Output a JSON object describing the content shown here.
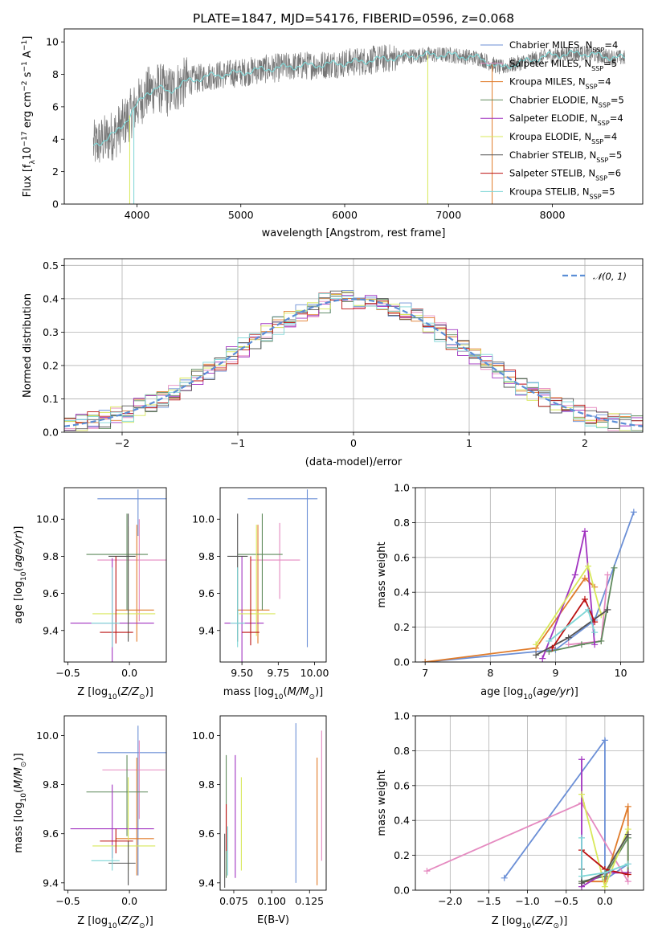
{
  "title": "PLATE=1847, MJD=54176, FIBERID=0596, z=0.068",
  "colors": [
    "#6b8fd6",
    "#e58ac0",
    "#e07b2a",
    "#5f8a5c",
    "#a133c0",
    "#d8e85a",
    "#555555",
    "#bb1111",
    "#7dd6d6"
  ],
  "chart_data": [
    {
      "id": "spectrum",
      "type": "line",
      "xlabel": "wavelength [Angstrom, rest frame]",
      "ylabel": "Flux [f_λ10^-17 erg cm^-2 s^-1 A^-1]",
      "xlim": [
        3300,
        8870
      ],
      "ylim": [
        0,
        10.8
      ],
      "xticks": [
        4000,
        5000,
        6000,
        7000,
        8000
      ],
      "yticks": [
        0,
        2,
        4,
        6,
        8,
        10
      ],
      "grid": false,
      "legend_position": "top-right",
      "legend": [
        {
          "label": "Chabrier MILES",
          "nssp": "4"
        },
        {
          "label": "Salpeter MILES",
          "nssp": "5"
        },
        {
          "label": "Kroupa MILES",
          "nssp": "4"
        },
        {
          "label": "Chabrier ELODIE",
          "nssp": "5"
        },
        {
          "label": "Salpeter ELODIE",
          "nssp": "4"
        },
        {
          "label": "Kroupa ELODIE",
          "nssp": "4"
        },
        {
          "label": "Chabrier STELIB",
          "nssp": "5"
        },
        {
          "label": "Salpeter STELIB",
          "nssp": "6"
        },
        {
          "label": "Kroupa STELIB",
          "nssp": "5"
        }
      ],
      "data_continuum": {
        "x": [
          3580,
          3700,
          3800,
          3900,
          4000,
          4100,
          4200,
          4300,
          4400,
          4500,
          4700,
          5000,
          5200,
          5500,
          5800,
          6000,
          6300,
          6600,
          6800,
          7000,
          7300,
          7500,
          7800,
          8000,
          8300,
          8500,
          8700
        ],
        "y": [
          3.6,
          4.0,
          4.4,
          5.2,
          6.1,
          6.9,
          7.2,
          6.9,
          7.3,
          7.6,
          7.9,
          8.1,
          8.3,
          8.5,
          8.6,
          8.7,
          8.9,
          9.1,
          9.2,
          9.2,
          9.0,
          8.4,
          8.9,
          9.2,
          9.3,
          9.1,
          9.0
        ]
      }
    },
    {
      "id": "residuals",
      "type": "histogram",
      "xlabel": "(data-model)/error",
      "ylabel": "Normed distribution",
      "xlim": [
        -2.5,
        2.5
      ],
      "ylim": [
        0,
        0.52
      ],
      "xticks": [
        -2,
        -1,
        0,
        1,
        2
      ],
      "yticks": [
        0.0,
        0.1,
        0.2,
        0.3,
        0.4,
        0.5
      ],
      "grid": true,
      "legend_position": "top-right",
      "legend": [
        "𝒩(0, 1)"
      ],
      "bin_width": 0.1
    },
    {
      "id": "age_vs_Z",
      "type": "errorbar",
      "xlabel": "Z [log10(Z/Z☉)]",
      "ylabel": "age  [log10(age/yr)]",
      "xlim": [
        -0.53,
        0.3
      ],
      "ylim": [
        9.23,
        10.17
      ],
      "xticks": [
        -0.5,
        0.0
      ],
      "yticks": [
        9.4,
        9.6,
        9.8,
        10.0
      ],
      "points": [
        {
          "x": 0.07,
          "xerr": [
            0.33,
            0.27
          ],
          "y": 10.11,
          "yerr": [
            0.2,
            0.05
          ]
        },
        {
          "x": 0.08,
          "xerr": [
            0.34,
            0.22
          ],
          "y": 9.78,
          "yerr": [
            0.33,
            0.22
          ]
        },
        {
          "x": 0.06,
          "xerr": [
            0.17,
            0.14
          ],
          "y": 9.51,
          "yerr": [
            0.17,
            0.46
          ]
        },
        {
          "x": -0.02,
          "xerr": [
            0.33,
            0.17
          ],
          "y": 9.81,
          "yerr": [
            0.3,
            0.22
          ]
        },
        {
          "x": -0.14,
          "xerr": [
            0.34,
            0.34
          ],
          "y": 9.44,
          "yerr": [
            0.23,
            0.35
          ]
        },
        {
          "x": -0.01,
          "xerr": [
            0.29,
            0.22
          ],
          "y": 9.49,
          "yerr": [
            0.13,
            0.47
          ]
        },
        {
          "x": -0.01,
          "xerr": [
            0.16,
            0.06
          ],
          "y": 9.8,
          "yerr": [
            0.46,
            0.23
          ]
        },
        {
          "x": -0.11,
          "xerr": [
            0.13,
            0.14
          ],
          "y": 9.39,
          "yerr": [
            0.06,
            0.41
          ]
        },
        {
          "x": -0.14,
          "xerr": [
            0.17,
            0.06
          ],
          "y": 9.44,
          "yerr": [
            0.13,
            0.3
          ]
        }
      ]
    },
    {
      "id": "age_vs_mass",
      "type": "errorbar",
      "xlabel": "mass [log10(M/M☉)]",
      "ylabel": "",
      "xlim": [
        9.35,
        10.08
      ],
      "ylim": [
        9.23,
        10.17
      ],
      "xticks": [
        9.5,
        9.75,
        10.0
      ],
      "yticks": [
        9.4,
        9.6,
        9.8,
        10.0
      ],
      "points": [
        {
          "x": 9.95,
          "xerr": [
            0.41,
            0.07
          ],
          "y": 10.11,
          "yerr": [
            0.8,
            0.05
          ]
        },
        {
          "x": 9.76,
          "xerr": [
            0.2,
            0.14
          ],
          "y": 9.78,
          "yerr": [
            0.21,
            0.2
          ]
        },
        {
          "x": 9.61,
          "xerr": [
            0.14,
            0.08
          ],
          "y": 9.51,
          "yerr": [
            0.18,
            0.46
          ]
        },
        {
          "x": 9.64,
          "xerr": [
            0.17,
            0.14
          ],
          "y": 9.81,
          "yerr": [
            0.3,
            0.22
          ]
        },
        {
          "x": 9.5,
          "xerr": [
            0.12,
            0.15
          ],
          "y": 9.44,
          "yerr": [
            0.22,
            0.36
          ]
        },
        {
          "x": 9.6,
          "xerr": [
            0.12,
            0.13
          ],
          "y": 9.49,
          "yerr": [
            0.12,
            0.48
          ]
        },
        {
          "x": 9.47,
          "xerr": [
            0.07,
            0.07
          ],
          "y": 9.8,
          "yerr": [
            0.46,
            0.23
          ]
        },
        {
          "x": 9.56,
          "xerr": [
            0.06,
            0.06
          ],
          "y": 9.39,
          "yerr": [
            0.07,
            0.41
          ]
        },
        {
          "x": 9.47,
          "xerr": [
            0.05,
            0.05
          ],
          "y": 9.44,
          "yerr": [
            0.13,
            0.3
          ]
        }
      ]
    },
    {
      "id": "massweight_vs_age",
      "type": "line",
      "xlabel": "age  [log10(age/yr)]",
      "ylabel": "mass weight",
      "xlim": [
        6.85,
        10.35
      ],
      "ylim": [
        0,
        1.0
      ],
      "xticks": [
        7,
        8,
        9,
        10
      ],
      "yticks": [
        0.0,
        0.2,
        0.4,
        0.6,
        0.8,
        1.0
      ],
      "grid": true,
      "series": [
        {
          "x": [
            7.0,
            9.0,
            9.6,
            10.2
          ],
          "y": [
            0.0,
            0.07,
            0.24,
            0.86
          ]
        },
        {
          "x": [
            9.2,
            9.7,
            9.8
          ],
          "y": [
            0.1,
            0.12,
            0.5
          ]
        },
        {
          "x": [
            7.0,
            8.7,
            9.45,
            9.6
          ],
          "y": [
            0.0,
            0.08,
            0.48,
            0.43
          ]
        },
        {
          "x": [
            8.9,
            9.4,
            9.7,
            9.9
          ],
          "y": [
            0.06,
            0.1,
            0.12,
            0.54
          ]
        },
        {
          "x": [
            8.8,
            9.3,
            9.45,
            9.6
          ],
          "y": [
            0.02,
            0.5,
            0.75,
            0.1
          ]
        },
        {
          "x": [
            8.7,
            9.5,
            9.7
          ],
          "y": [
            0.1,
            0.55,
            0.27
          ]
        },
        {
          "x": [
            8.7,
            9.2,
            9.8
          ],
          "y": [
            0.04,
            0.14,
            0.3
          ]
        },
        {
          "x": [
            8.95,
            9.45,
            9.6
          ],
          "y": [
            0.08,
            0.36,
            0.23
          ]
        },
        {
          "x": [
            8.9,
            9.5,
            9.6
          ],
          "y": [
            0.12,
            0.3,
            0.17
          ]
        }
      ]
    },
    {
      "id": "mass_vs_Z",
      "type": "errorbar",
      "xlabel": "Z [log10(Z/Z☉)]",
      "ylabel": "mass [log10(M/M☉)]",
      "xlim": [
        -0.53,
        0.3
      ],
      "ylim": [
        9.37,
        10.08
      ],
      "xticks": [
        -0.5,
        0.0
      ],
      "yticks": [
        9.4,
        9.6,
        9.8,
        10.0
      ],
      "points": [
        {
          "x": 0.07,
          "xerr": [
            0.33,
            0.27
          ],
          "y": 9.93,
          "yerr": [
            0.5,
            0.11
          ]
        },
        {
          "x": 0.08,
          "xerr": [
            0.3,
            0.21
          ],
          "y": 9.86,
          "yerr": [
            0.2,
            0.12
          ]
        },
        {
          "x": 0.06,
          "xerr": [
            0.17,
            0.14
          ],
          "y": 9.58,
          "yerr": [
            0.15,
            0.33
          ]
        },
        {
          "x": -0.02,
          "xerr": [
            0.33,
            0.17
          ],
          "y": 9.77,
          "yerr": [
            0.18,
            0.15
          ]
        },
        {
          "x": -0.14,
          "xerr": [
            0.34,
            0.34
          ],
          "y": 9.62,
          "yerr": [
            0.12,
            0.18
          ]
        },
        {
          "x": -0.01,
          "xerr": [
            0.29,
            0.22
          ],
          "y": 9.55,
          "yerr": [
            0.1,
            0.28
          ]
        },
        {
          "x": -0.01,
          "xerr": [
            0.16,
            0.06
          ],
          "y": 9.48,
          "yerr": [
            0.09,
            0.09
          ]
        },
        {
          "x": -0.11,
          "xerr": [
            0.13,
            0.14
          ],
          "y": 9.57,
          "yerr": [
            0.05,
            0.05
          ]
        },
        {
          "x": -0.14,
          "xerr": [
            0.17,
            0.06
          ],
          "y": 9.49,
          "yerr": [
            0.04,
            0.06
          ]
        }
      ]
    },
    {
      "id": "mass_vs_ebv",
      "type": "errorbar",
      "xlabel": "E(B-V)",
      "ylabel": "",
      "xlim": [
        0.066,
        0.136
      ],
      "ylim": [
        9.37,
        10.08
      ],
      "xticks": [
        0.075,
        0.1,
        0.125
      ],
      "yticks": [
        9.4,
        9.6,
        9.8,
        10.0
      ],
      "points": [
        {
          "x": 0.116,
          "y": 9.72,
          "yerr": [
            0.32,
            0.33
          ]
        },
        {
          "x": 0.133,
          "y": 9.75,
          "yerr": [
            0.26,
            0.27
          ]
        },
        {
          "x": 0.13,
          "y": 9.65,
          "yerr": [
            0.26,
            0.26
          ]
        },
        {
          "x": 0.07,
          "y": 9.72,
          "yerr": [
            0.3,
            0.2
          ]
        },
        {
          "x": 0.076,
          "y": 9.64,
          "yerr": [
            0.22,
            0.28
          ]
        },
        {
          "x": 0.08,
          "y": 9.64,
          "yerr": [
            0.19,
            0.19
          ]
        },
        {
          "x": 0.069,
          "y": 9.5,
          "yerr": [
            0.12,
            0.1
          ]
        },
        {
          "x": 0.07,
          "y": 9.62,
          "yerr": [
            0.09,
            0.1
          ]
        },
        {
          "x": 0.071,
          "y": 9.53,
          "yerr": [
            0.1,
            0.1
          ]
        }
      ]
    },
    {
      "id": "massweight_vs_Z",
      "type": "line",
      "xlabel": "Z [log10(Z/Z☉)]",
      "ylabel": "mass weight",
      "xlim": [
        -2.45,
        0.5
      ],
      "ylim": [
        0,
        1.0
      ],
      "xticks": [
        -2.0,
        -1.5,
        -1.0,
        -0.5,
        0.0
      ],
      "yticks": [
        0.0,
        0.2,
        0.4,
        0.6,
        0.8,
        1.0
      ],
      "grid": true,
      "series": [
        {
          "x": [
            -1.3,
            0.0,
            0.0,
            0.3
          ],
          "y": [
            0.07,
            0.86,
            0.06,
            0.15
          ]
        },
        {
          "x": [
            -2.3,
            -0.3,
            0.3
          ],
          "y": [
            0.11,
            0.5,
            0.05
          ]
        },
        {
          "x": [
            -0.3,
            0.0,
            0.3,
            0.3
          ],
          "y": [
            0.05,
            0.05,
            0.48,
            0.1
          ]
        },
        {
          "x": [
            -0.3,
            0.0,
            0.3,
            0.3
          ],
          "y": [
            0.05,
            0.08,
            0.3,
            0.1
          ]
        },
        {
          "x": [
            -0.3,
            -0.3,
            0.0,
            0.3
          ],
          "y": [
            0.75,
            0.02,
            0.1,
            0.1
          ]
        },
        {
          "x": [
            -0.3,
            0.0,
            0.3
          ],
          "y": [
            0.55,
            0.02,
            0.35
          ]
        },
        {
          "x": [
            -0.3,
            -0.3,
            0.0,
            0.3
          ],
          "y": [
            0.12,
            0.04,
            0.1,
            0.32
          ]
        },
        {
          "x": [
            -0.3,
            0.0,
            0.3
          ],
          "y": [
            0.23,
            0.12,
            0.09
          ]
        },
        {
          "x": [
            -0.3,
            -0.3,
            0.0,
            0.3
          ],
          "y": [
            0.3,
            0.08,
            0.1,
            0.15
          ]
        }
      ]
    }
  ]
}
